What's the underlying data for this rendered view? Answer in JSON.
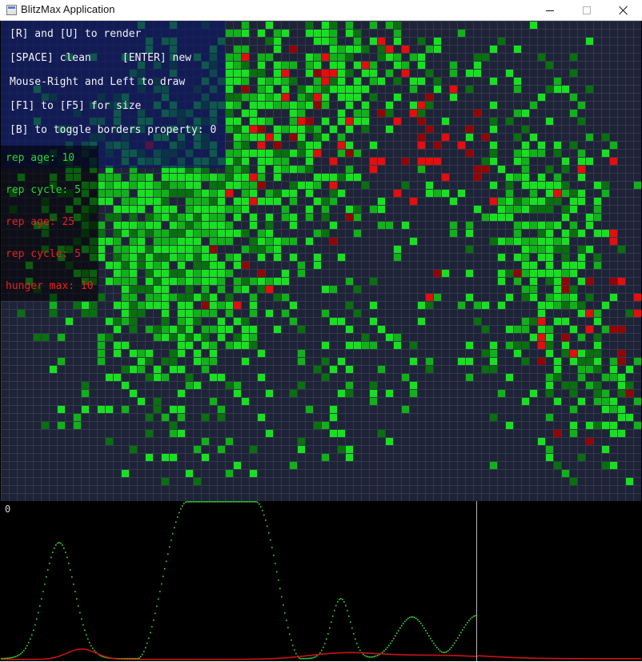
{
  "window": {
    "title": "BlitzMax Application",
    "icons": {
      "app": "app-window-icon",
      "minimize": "minimize-icon",
      "maximize": "maximize-icon",
      "close": "close-icon"
    }
  },
  "help": {
    "render": "[R] and [U] to render",
    "clean_new": "[SPACE] clean     [ENTER] new",
    "draw": "Mouse-Right and Left to draw",
    "size": "[F1] to [F5] for size",
    "borders": "[B] to toggle borders property: 0"
  },
  "parameters": {
    "green_rep_age": "rep age: 10",
    "green_rep_cycle": "rep cycle: 5",
    "red_rep_age": "rep age: 25",
    "red_rep_cycle": "rep cycle: 5",
    "red_hunger_max": "hunger max: 10"
  },
  "graph": {
    "zero_label": "0"
  },
  "colors": {
    "grid_background": "#1f2338",
    "green_bright": "#19df23",
    "green_mid": "#12b01b",
    "green_dark": "#0a6f10",
    "red_bright": "#e20f0f",
    "red_dark": "#8f0606",
    "help_text": "#f3f3f3",
    "param_green": "#27d635",
    "param_red": "#ea2020"
  }
}
